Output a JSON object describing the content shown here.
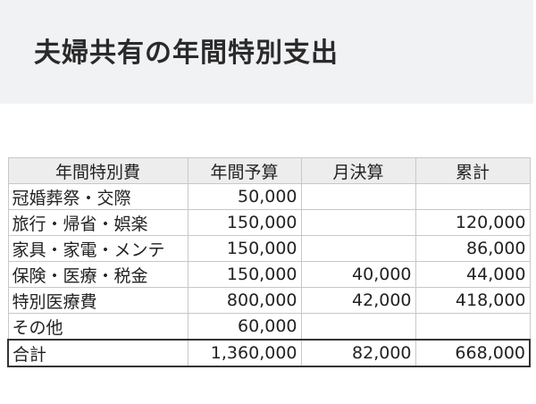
{
  "title": "夫婦共有の年間特別支出",
  "table": {
    "headers": [
      "年間特別費",
      "年間予算",
      "月決算",
      "累計"
    ],
    "rows": [
      [
        "冠婚葬祭・交際",
        "50,000",
        "",
        ""
      ],
      [
        "旅行・帰省・娯楽",
        "150,000",
        "",
        "120,000"
      ],
      [
        "家具・家電・メンテ",
        "150,000",
        "",
        "86,000"
      ],
      [
        "保険・医療・税金",
        "150,000",
        "40,000",
        "44,000"
      ],
      [
        "特別医療費",
        "800,000",
        "42,000",
        "418,000"
      ],
      [
        "その他",
        "60,000",
        "",
        ""
      ]
    ],
    "total": [
      "合計",
      "1,360,000",
      "82,000",
      "668,000"
    ]
  }
}
